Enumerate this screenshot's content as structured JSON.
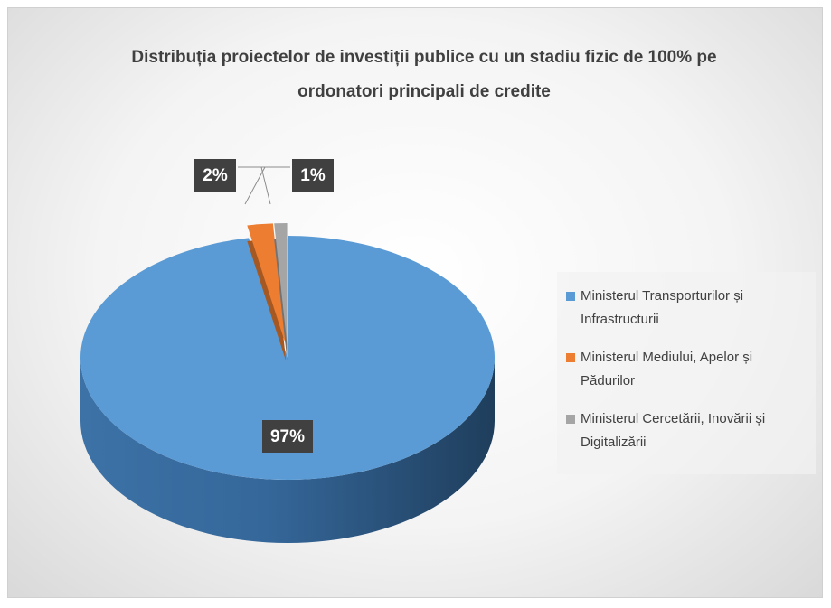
{
  "chart_data": {
    "type": "pie3d",
    "title": "Distribuția proiectelor de investiții publice cu un stadiu fizic de 100% pe ordonatori principali de credite",
    "categories": [
      "Ministerul Transporturilor și Infrastructurii",
      "Ministerul Mediului, Apelor și Pădurilor",
      "Ministerul Cercetării, Inovării și Digitalizării"
    ],
    "values": [
      97,
      2,
      1
    ],
    "value_labels": [
      "97%",
      "2%",
      "1%"
    ],
    "colors": [
      "#5b9bd5",
      "#ed7d31",
      "#a5a5a5"
    ],
    "legend": "right"
  }
}
